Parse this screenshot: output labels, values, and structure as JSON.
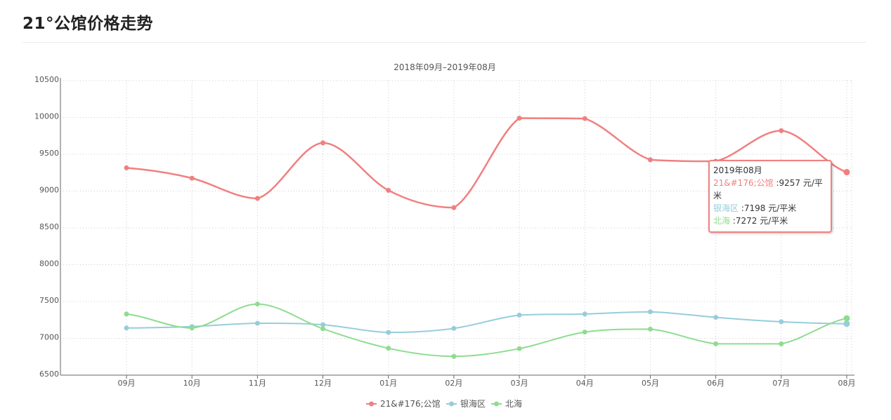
{
  "page": {
    "title": "21°公馆价格走势"
  },
  "chart_data": {
    "type": "line",
    "title": "2018年09月–2019年08月",
    "xlabel": "",
    "ylabel": "",
    "categories": [
      "09月",
      "10月",
      "11月",
      "12月",
      "01月",
      "02月",
      "03月",
      "04月",
      "05月",
      "06月",
      "07月",
      "08月"
    ],
    "ylim": [
      6500,
      10500
    ],
    "yticks": [
      6500,
      7000,
      7500,
      8000,
      8500,
      9000,
      9500,
      10000,
      10500
    ],
    "grid": true,
    "legend_position": "bottom-center",
    "series": [
      {
        "name": "21&#176;公馆",
        "color": "#f08080",
        "values": [
          9315,
          9175,
          8900,
          9655,
          9010,
          8775,
          9990,
          9985,
          9425,
          9405,
          9820,
          9257
        ]
      },
      {
        "name": "银海区",
        "color": "#96cddb",
        "values": [
          7140,
          7160,
          7205,
          7185,
          7080,
          7135,
          7315,
          7330,
          7360,
          7285,
          7225,
          7198
        ]
      },
      {
        "name": "北海",
        "color": "#8fdc8f",
        "values": [
          7330,
          7140,
          7465,
          7130,
          6865,
          6755,
          6860,
          7085,
          7125,
          6925,
          6925,
          7272
        ]
      }
    ],
    "tooltip": {
      "date": "2019年08月",
      "rows": [
        {
          "series": "21&#176;公馆",
          "value": ":9257 元/平米",
          "color": "#f08080"
        },
        {
          "series": "银海区",
          "value": ":7198 元/平米",
          "color": "#96cddb"
        },
        {
          "series": "北海",
          "value": ":7272 元/平米",
          "color": "#8fdc8f"
        }
      ]
    }
  }
}
